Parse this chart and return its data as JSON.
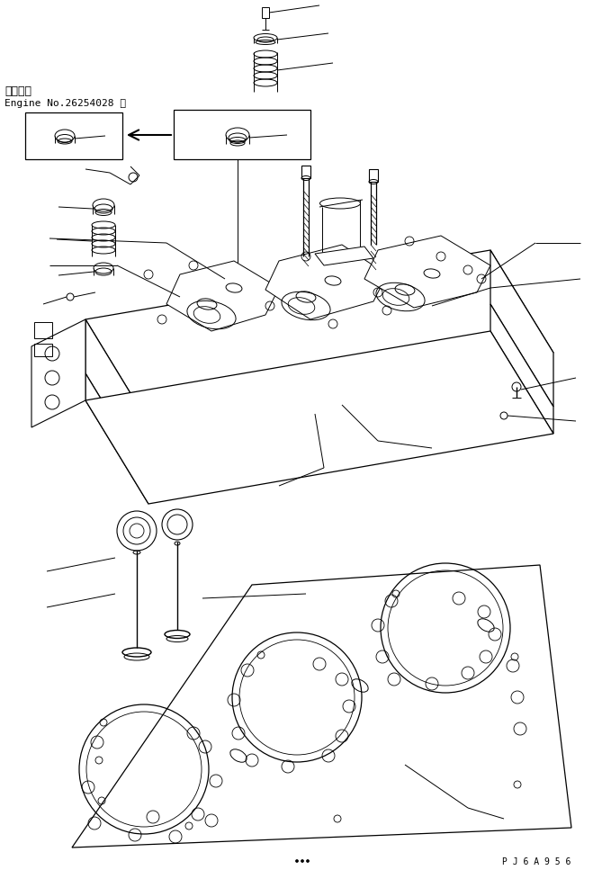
{
  "text_line1": "適用号機",
  "text_line2": "Engine No.26254028 ～",
  "watermark": "P J 6 A 9 5 6",
  "bg_color": "#ffffff",
  "line_color": "#000000",
  "figsize": [
    6.69,
    9.67
  ],
  "dpi": 100
}
